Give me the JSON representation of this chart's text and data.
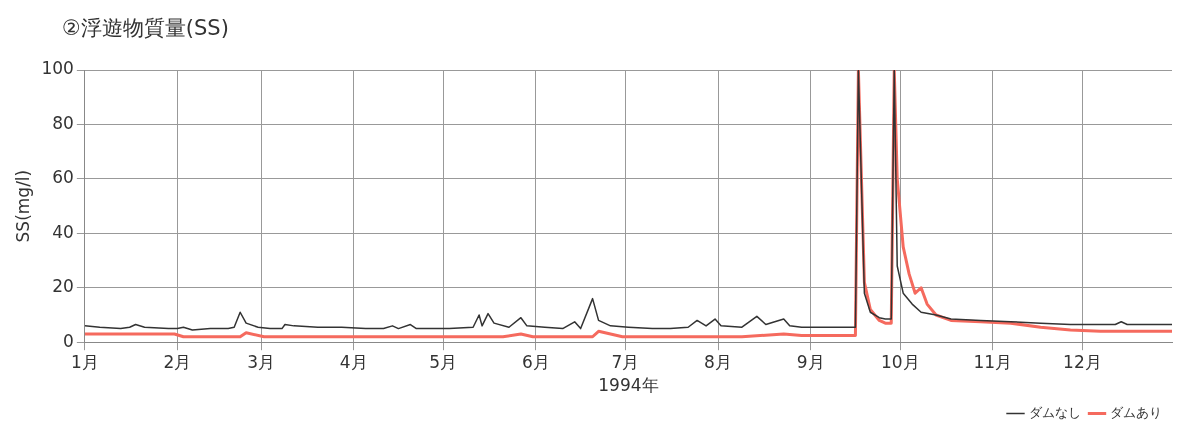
{
  "chart_data": {
    "type": "line",
    "title": "②浮遊物質量(SS)",
    "xlabel": "1994年",
    "ylabel": "SS(mg/l)",
    "xlim": [
      "1994-01-01",
      "1994-12-31"
    ],
    "xticks": [
      {
        "value": "1994-01-01",
        "label": "1月"
      },
      {
        "value": "1994-02-01",
        "label": "2月"
      },
      {
        "value": "1994-03-01",
        "label": "3月"
      },
      {
        "value": "1994-04-01",
        "label": "4月"
      },
      {
        "value": "1994-05-01",
        "label": "5月"
      },
      {
        "value": "1994-06-01",
        "label": "6月"
      },
      {
        "value": "1994-07-01",
        "label": "7月"
      },
      {
        "value": "1994-08-01",
        "label": "8月"
      },
      {
        "value": "1994-09-01",
        "label": "9月"
      },
      {
        "value": "1994-10-01",
        "label": "10月"
      },
      {
        "value": "1994-11-01",
        "label": "11月"
      },
      {
        "value": "1994-12-01",
        "label": "12月"
      }
    ],
    "ylim": [
      0,
      100
    ],
    "yticks": [
      0,
      20,
      40,
      60,
      80,
      100
    ],
    "grid": true,
    "legend": "bottom right",
    "marker": "none",
    "line_style": "solid",
    "series": [
      {
        "name": "ダムなし",
        "color": "#333333",
        "x": [
          "1994-01-01",
          "1994-01-06",
          "1994-01-13",
          "1994-01-16",
          "1994-01-18",
          "1994-01-21",
          "1994-01-29",
          "1994-02-01",
          "1994-02-03",
          "1994-02-06",
          "1994-02-12",
          "1994-02-18",
          "1994-02-20",
          "1994-02-22",
          "1994-02-24",
          "1994-02-28",
          "1994-03-04",
          "1994-03-08",
          "1994-03-09",
          "1994-03-12",
          "1994-03-20",
          "1994-03-28",
          "1994-04-05",
          "1994-04-11",
          "1994-04-14",
          "1994-04-16",
          "1994-04-20",
          "1994-04-22",
          "1994-04-27",
          "1994-05-03",
          "1994-05-11",
          "1994-05-13",
          "1994-05-14",
          "1994-05-16",
          "1994-05-18",
          "1994-05-23",
          "1994-05-27",
          "1994-05-29",
          "1994-06-04",
          "1994-06-10",
          "1994-06-14",
          "1994-06-16",
          "1994-06-20",
          "1994-06-22",
          "1994-06-26",
          "1994-07-02",
          "1994-07-10",
          "1994-07-16",
          "1994-07-22",
          "1994-07-25",
          "1994-07-28",
          "1994-07-31",
          "1994-08-02",
          "1994-08-09",
          "1994-08-14",
          "1994-08-17",
          "1994-08-23",
          "1994-08-25",
          "1994-08-29",
          "1994-09-08",
          "1994-09-16",
          "1994-09-17",
          "1994-09-19",
          "1994-09-21",
          "1994-09-24",
          "1994-09-26",
          "1994-09-28",
          "1994-09-29",
          "1994-09-30",
          "1994-10-02",
          "1994-10-05",
          "1994-10-08",
          "1994-10-13",
          "1994-10-18",
          "1994-10-28",
          "1994-11-07",
          "1994-11-17",
          "1994-11-27",
          "1994-12-07",
          "1994-12-12",
          "1994-12-14",
          "1994-12-16",
          "1994-12-22",
          "1994-12-31"
        ],
        "values": [
          6,
          5.5,
          5,
          5.5,
          6.5,
          5.5,
          5,
          5,
          5.5,
          4.5,
          5,
          5,
          5.5,
          11,
          7,
          5.5,
          5,
          5,
          6.5,
          6,
          5.5,
          5.5,
          5,
          5,
          6,
          5,
          6.5,
          5,
          5,
          5,
          5.5,
          10,
          6,
          10.5,
          7,
          5.5,
          9,
          6,
          5.5,
          5,
          7.5,
          5,
          16,
          8,
          6,
          5.5,
          5,
          5,
          5.5,
          8,
          6,
          8.5,
          6,
          5.5,
          9.5,
          6.5,
          8.5,
          6,
          5.5,
          5.5,
          5.5,
          100,
          18,
          11,
          9,
          8.5,
          8.5,
          100,
          28,
          18,
          14,
          11,
          10,
          8.5,
          8,
          7.5,
          7,
          6.5,
          6.5,
          6.5,
          7.5,
          6.5,
          6.5,
          6.5
        ]
      },
      {
        "name": "ダムあり",
        "color": "#f56a5e",
        "x": [
          "1994-01-01",
          "1994-01-11",
          "1994-01-21",
          "1994-01-31",
          "1994-02-03",
          "1994-02-10",
          "1994-02-22",
          "1994-02-24",
          "1994-03-02",
          "1994-03-22",
          "1994-04-11",
          "1994-05-01",
          "1994-05-21",
          "1994-05-27",
          "1994-05-31",
          "1994-06-20",
          "1994-06-22",
          "1994-06-30",
          "1994-07-20",
          "1994-08-09",
          "1994-08-23",
          "1994-08-29",
          "1994-09-16",
          "1994-09-17",
          "1994-09-19",
          "1994-09-21",
          "1994-09-24",
          "1994-09-26",
          "1994-09-28",
          "1994-09-29",
          "1994-09-30",
          "1994-10-02",
          "1994-10-04",
          "1994-10-06",
          "1994-10-08",
          "1994-10-10",
          "1994-10-13",
          "1994-10-18",
          "1994-10-28",
          "1994-11-07",
          "1994-11-17",
          "1994-11-27",
          "1994-12-07",
          "1994-12-17",
          "1994-12-31"
        ],
        "values": [
          3,
          3,
          3,
          3,
          2,
          2,
          2,
          3.5,
          2,
          2,
          2,
          2,
          2,
          3,
          2,
          2,
          4,
          2,
          2,
          2,
          3,
          2.5,
          2.5,
          100,
          22,
          12,
          8,
          7,
          7,
          100,
          60,
          35,
          25,
          18,
          20,
          14,
          10,
          8,
          7.5,
          7,
          5.5,
          4.5,
          4,
          4,
          4
        ]
      }
    ]
  }
}
